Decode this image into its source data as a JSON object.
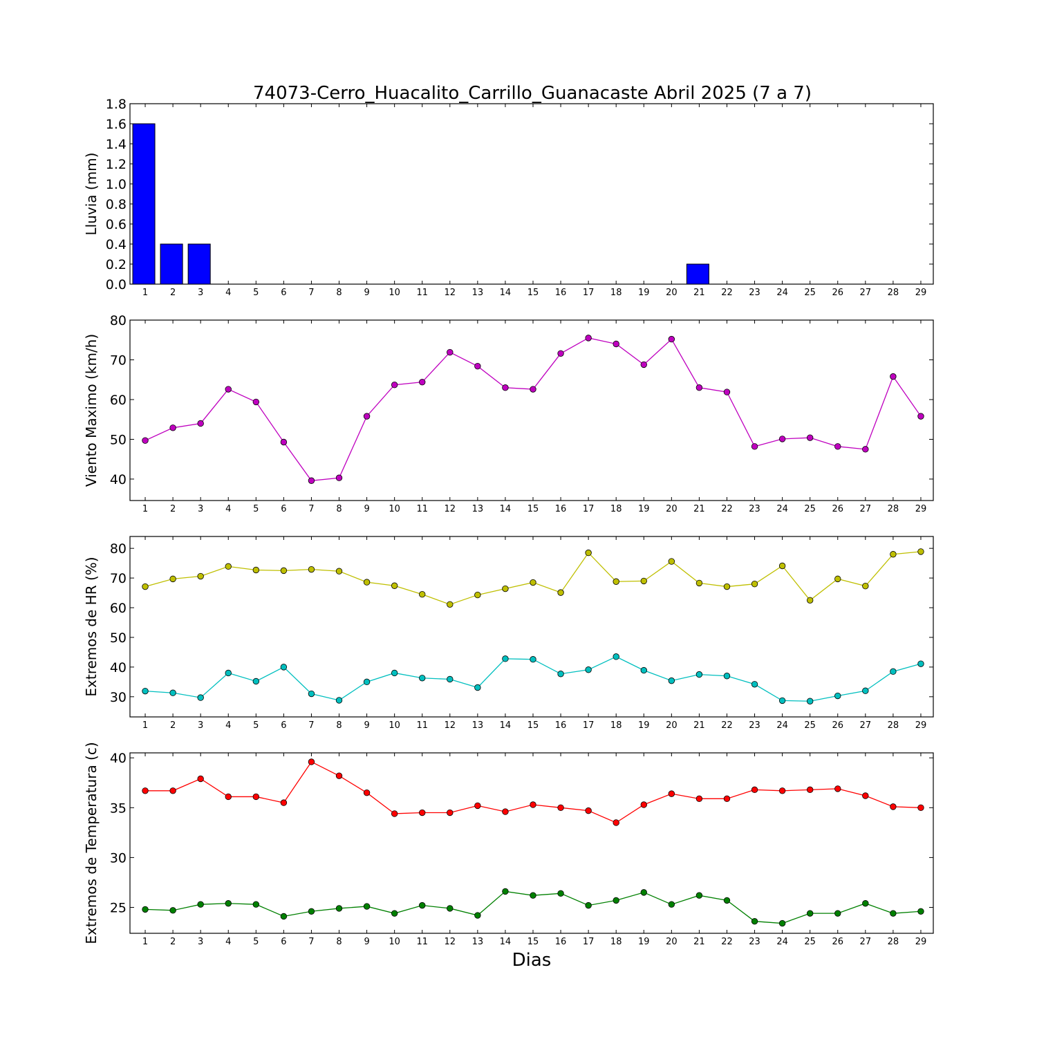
{
  "figure": {
    "title": "74073-Cerro_Huacalito_Carrillo_Guanacaste Abril 2025  (7 a 7)",
    "xlabel": "Dias"
  },
  "chart_data": [
    {
      "type": "bar",
      "ylabel": "Lluvia (mm)",
      "ylim": [
        0,
        1.8
      ],
      "yticks": [
        "0.0",
        "0.2",
        "0.4",
        "0.6",
        "0.8",
        "1.0",
        "1.2",
        "1.4",
        "1.6",
        "1.8"
      ],
      "categories": [
        1,
        2,
        3,
        4,
        5,
        6,
        7,
        8,
        9,
        10,
        11,
        12,
        13,
        14,
        15,
        16,
        17,
        18,
        19,
        20,
        21,
        22,
        23,
        24,
        25,
        26,
        27,
        28,
        29
      ],
      "series": [
        {
          "color": "#0000ff",
          "values": [
            1.6,
            0.4,
            0.4,
            0,
            0,
            0,
            0,
            0,
            0,
            0,
            0,
            0,
            0,
            0,
            0,
            0,
            0,
            0,
            0,
            0,
            0.2,
            0,
            0,
            0,
            0,
            0,
            0,
            0,
            0
          ]
        }
      ]
    },
    {
      "type": "line",
      "ylabel": "Viento Maximo (km/h)",
      "ylim": [
        34.6,
        80
      ],
      "yticks": [
        "40",
        "50",
        "60",
        "70",
        "80"
      ],
      "categories": [
        1,
        2,
        3,
        4,
        5,
        6,
        7,
        8,
        9,
        10,
        11,
        12,
        13,
        14,
        15,
        16,
        17,
        18,
        19,
        20,
        21,
        22,
        23,
        24,
        25,
        26,
        27,
        28,
        29
      ],
      "series": [
        {
          "color": "#bf00bf",
          "values": [
            49.7,
            52.9,
            54.0,
            62.6,
            59.4,
            49.3,
            39.6,
            40.3,
            55.8,
            63.7,
            64.4,
            71.9,
            68.4,
            63.0,
            62.6,
            71.6,
            75.5,
            74.0,
            68.8,
            75.2,
            63.0,
            61.9,
            48.2,
            50.1,
            50.4,
            48.2,
            47.5,
            65.8,
            55.8
          ]
        }
      ]
    },
    {
      "type": "line",
      "ylabel": "Extremos de HR (%)",
      "ylim": [
        23.2,
        84
      ],
      "yticks": [
        "30",
        "40",
        "50",
        "60",
        "70",
        "80"
      ],
      "categories": [
        1,
        2,
        3,
        4,
        5,
        6,
        7,
        8,
        9,
        10,
        11,
        12,
        13,
        14,
        15,
        16,
        17,
        18,
        19,
        20,
        21,
        22,
        23,
        24,
        25,
        26,
        27,
        28,
        29
      ],
      "series": [
        {
          "color": "#bfbf00",
          "values": [
            67.1,
            69.7,
            70.6,
            73.9,
            72.7,
            72.5,
            72.9,
            72.3,
            68.6,
            67.4,
            64.5,
            61.1,
            64.3,
            66.4,
            68.5,
            65.1,
            78.5,
            68.8,
            69.0,
            75.6,
            68.3,
            67.1,
            68.0,
            74.1,
            62.5,
            69.7,
            67.3,
            78.0,
            78.9
          ]
        },
        {
          "color": "#00bfbf",
          "values": [
            31.9,
            31.3,
            29.7,
            38.0,
            35.2,
            40.0,
            31.0,
            28.8,
            35.0,
            38.0,
            36.3,
            35.9,
            33.1,
            42.8,
            42.6,
            37.7,
            39.1,
            43.5,
            38.9,
            35.4,
            37.5,
            37.0,
            34.2,
            28.7,
            28.5,
            30.3,
            32.0,
            38.5,
            41.1
          ]
        }
      ]
    },
    {
      "type": "line",
      "ylabel": "Extremos de Temperatura (c)",
      "ylim": [
        22.4,
        40.5
      ],
      "yticks": [
        "25",
        "30",
        "35",
        "40"
      ],
      "categories": [
        1,
        2,
        3,
        4,
        5,
        6,
        7,
        8,
        9,
        10,
        11,
        12,
        13,
        14,
        15,
        16,
        17,
        18,
        19,
        20,
        21,
        22,
        23,
        24,
        25,
        26,
        27,
        28,
        29
      ],
      "series": [
        {
          "color": "#ff0000",
          "values": [
            36.7,
            36.7,
            37.9,
            36.1,
            36.1,
            35.5,
            39.6,
            38.2,
            36.5,
            34.4,
            34.5,
            34.5,
            35.2,
            34.6,
            35.3,
            35.0,
            34.7,
            33.5,
            35.3,
            36.4,
            35.9,
            35.9,
            36.8,
            36.7,
            36.8,
            36.9,
            36.2,
            35.1,
            35.0
          ]
        },
        {
          "color": "#008000",
          "values": [
            24.8,
            24.7,
            25.3,
            25.4,
            25.3,
            24.1,
            24.6,
            24.9,
            25.1,
            24.4,
            25.2,
            24.9,
            24.2,
            26.6,
            26.2,
            26.4,
            25.2,
            25.7,
            26.5,
            25.3,
            26.2,
            25.7,
            23.6,
            23.4,
            24.4,
            24.4,
            25.4,
            24.4,
            24.6
          ]
        }
      ]
    }
  ]
}
